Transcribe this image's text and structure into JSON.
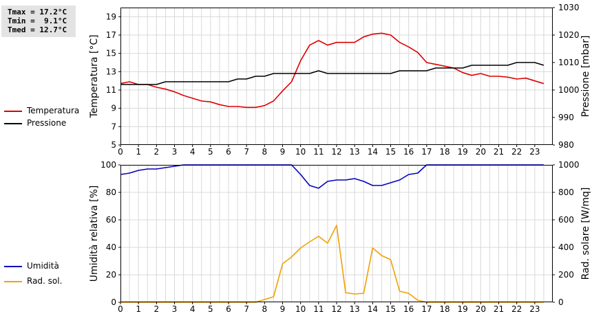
{
  "stats": {
    "tmax": "Tmax = 17.2°C",
    "tmin": "Tmin =  9.1°C",
    "tmed": "Tmed = 12.7°C"
  },
  "legend_top": [
    {
      "label": "Temperatura",
      "color": "#dd0000"
    },
    {
      "label": "Pressione",
      "color": "#000000"
    }
  ],
  "legend_bottom": [
    {
      "label": "Umidità",
      "color": "#0000bb"
    },
    {
      "label": "Rad. sol.",
      "color": "#f0a000"
    }
  ],
  "chart_data": [
    {
      "type": "line",
      "ylabel": "Temperatura [°C]",
      "y2label": "Pressione [mbar]",
      "xlim": [
        0,
        24
      ],
      "ylim": [
        5,
        20
      ],
      "y2lim": [
        980,
        1030
      ],
      "x_ticks": [
        "0",
        "1",
        "2",
        "3",
        "4",
        "5",
        "6",
        "7",
        "8",
        "9",
        "10",
        "11",
        "12",
        "13",
        "14",
        "15",
        "16",
        "17",
        "18",
        "19",
        "20",
        "21",
        "22",
        "23"
      ],
      "y_ticks": [
        "5",
        "7",
        "9",
        "11",
        "13",
        "15",
        "17",
        "19"
      ],
      "y2_ticks": [
        "980",
        "990",
        "1000",
        "1010",
        "1020",
        "1030"
      ],
      "grid": true,
      "series": [
        {
          "name": "Temperatura",
          "axis": "left",
          "color": "#dd0000",
          "x": [
            0,
            0.5,
            1,
            1.5,
            2,
            2.5,
            3,
            3.5,
            4,
            4.5,
            5,
            5.5,
            6,
            6.5,
            7,
            7.5,
            8,
            8.5,
            9,
            9.5,
            10,
            10.5,
            11,
            11.5,
            12,
            12.5,
            13,
            13.5,
            14,
            14.5,
            15,
            15.5,
            16,
            16.5,
            17,
            17.5,
            18,
            18.5,
            19,
            19.5,
            20,
            20.5,
            21,
            21.5,
            22,
            22.5,
            23,
            23.5
          ],
          "values": [
            11.7,
            11.9,
            11.6,
            11.6,
            11.3,
            11.1,
            10.8,
            10.4,
            10.1,
            9.8,
            9.7,
            9.4,
            9.2,
            9.2,
            9.1,
            9.1,
            9.3,
            9.8,
            10.9,
            11.9,
            14.2,
            15.9,
            16.4,
            15.9,
            16.2,
            16.2,
            16.2,
            16.8,
            17.1,
            17.2,
            17.0,
            16.2,
            15.7,
            15.1,
            14.0,
            13.8,
            13.6,
            13.4,
            12.9,
            12.6,
            12.8,
            12.5,
            12.5,
            12.4,
            12.2,
            12.3,
            12.0,
            11.7
          ]
        },
        {
          "name": "Pressione",
          "axis": "right",
          "color": "#000000",
          "x": [
            0,
            0.5,
            1,
            1.5,
            2,
            2.5,
            3,
            3.5,
            4,
            4.5,
            5,
            5.5,
            6,
            6.5,
            7,
            7.5,
            8,
            8.5,
            9,
            9.5,
            10,
            10.5,
            11,
            11.5,
            12,
            12.5,
            13,
            13.5,
            14,
            14.5,
            15,
            15.5,
            16,
            16.5,
            17,
            17.5,
            18,
            18.5,
            19,
            19.5,
            20,
            20.5,
            21,
            21.5,
            22,
            22.5,
            23,
            23.5
          ],
          "values": [
            1002,
            1002,
            1002,
            1002,
            1002,
            1003,
            1003,
            1003,
            1003,
            1003,
            1003,
            1003,
            1003,
            1004,
            1004,
            1005,
            1005,
            1006,
            1006,
            1006,
            1006,
            1006,
            1007,
            1006,
            1006,
            1006,
            1006,
            1006,
            1006,
            1006,
            1006,
            1007,
            1007,
            1007,
            1007,
            1008,
            1008,
            1008,
            1008,
            1009,
            1009,
            1009,
            1009,
            1009,
            1010,
            1010,
            1010,
            1009
          ]
        }
      ]
    },
    {
      "type": "line",
      "ylabel": "Umidità relativa [%]",
      "y2label": "Rad. solare [W/mq]",
      "xlim": [
        0,
        24
      ],
      "ylim": [
        0,
        100
      ],
      "y2lim": [
        0,
        1000
      ],
      "x_ticks": [
        "0",
        "1",
        "2",
        "3",
        "4",
        "5",
        "6",
        "7",
        "8",
        "9",
        "10",
        "11",
        "12",
        "13",
        "14",
        "15",
        "16",
        "17",
        "18",
        "19",
        "20",
        "21",
        "22",
        "23"
      ],
      "y_ticks": [
        "0",
        "20",
        "40",
        "60",
        "80",
        "100"
      ],
      "y2_ticks": [
        "0",
        "200",
        "400",
        "600",
        "800",
        "1000"
      ],
      "grid": true,
      "series": [
        {
          "name": "Umidità",
          "axis": "left",
          "color": "#0000bb",
          "x": [
            0,
            0.5,
            1,
            1.5,
            2,
            2.5,
            3,
            3.5,
            4,
            5,
            6,
            7,
            8,
            9,
            9.5,
            10,
            10.5,
            11,
            11.5,
            12,
            12.5,
            13,
            13.5,
            14,
            14.5,
            15,
            15.5,
            16,
            16.5,
            17,
            18,
            19,
            20,
            21,
            22,
            23,
            23.5
          ],
          "values": [
            93,
            94,
            96,
            97,
            97,
            98,
            99,
            100,
            100,
            100,
            100,
            100,
            100,
            100,
            100,
            93,
            85,
            83,
            88,
            89,
            89,
            90,
            88,
            85,
            85,
            87,
            89,
            93,
            94,
            100,
            100,
            100,
            100,
            100,
            100,
            100,
            100
          ]
        },
        {
          "name": "Rad. sol.",
          "axis": "right",
          "color": "#f0a000",
          "x": [
            0,
            1,
            2,
            3,
            4,
            5,
            6,
            7,
            7.5,
            8,
            8.5,
            9,
            9.5,
            10,
            10.5,
            11,
            11.5,
            12,
            12.5,
            13,
            13.5,
            14,
            14.5,
            15,
            15.5,
            16,
            16.5,
            17,
            18,
            19,
            20,
            21,
            22,
            23,
            23.5
          ],
          "values": [
            0,
            0,
            0,
            0,
            0,
            0,
            0,
            0,
            0,
            20,
            40,
            280,
            330,
            395,
            440,
            480,
            430,
            560,
            70,
            60,
            65,
            395,
            340,
            310,
            80,
            65,
            15,
            0,
            0,
            0,
            0,
            0,
            0,
            0,
            0
          ]
        }
      ]
    }
  ]
}
